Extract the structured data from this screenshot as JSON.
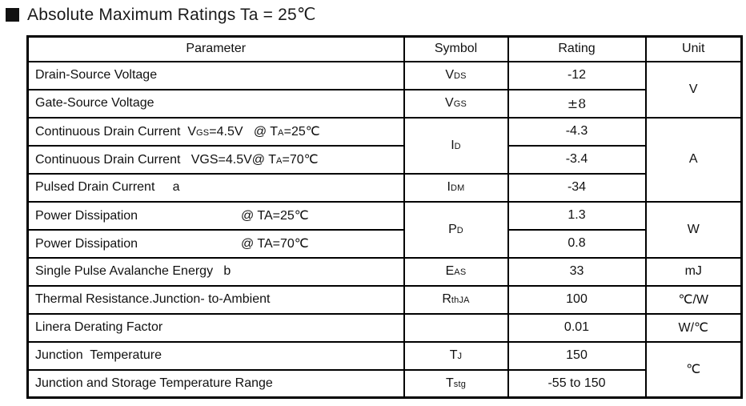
{
  "title": {
    "bullet_icon": "filled-square",
    "text": "Absolute Maximum Ratings Ta = 25℃"
  },
  "table": {
    "headers": [
      "Parameter",
      "Symbol",
      "Rating",
      "Unit"
    ],
    "rows": [
      {
        "param": [
          {
            "t": "Drain-Source Voltage"
          }
        ],
        "symbol": {
          "base": "V",
          "sub": "DS"
        },
        "rating": {
          "text": "-12"
        },
        "unit": {
          "text": "V",
          "rowspan": 2
        }
      },
      {
        "param": [
          {
            "t": "Gate-Source Voltage"
          }
        ],
        "symbol": {
          "base": "V",
          "sub": "GS"
        },
        "rating": {
          "text": "±8",
          "serif": true
        },
        "unit": null
      },
      {
        "param": [
          {
            "t": "Continuous Drain Current  V"
          },
          {
            "s": "GS"
          },
          {
            "t": "=4.5V   @ T"
          },
          {
            "s": "A"
          },
          {
            "t": "=25℃"
          }
        ],
        "symbol": {
          "base": "I",
          "sub": "D",
          "rowspan": 2
        },
        "rating": {
          "text": "-4.3"
        },
        "unit": {
          "text": "A",
          "rowspan": 3
        }
      },
      {
        "param": [
          {
            "t": "Continuous Drain Current   VGS=4.5V@ T"
          },
          {
            "s": "A"
          },
          {
            "t": "=70℃"
          }
        ],
        "symbol": null,
        "rating": {
          "text": "-3.4"
        },
        "unit": null
      },
      {
        "param": [
          {
            "t": "Pulsed Drain Current     a"
          }
        ],
        "symbol": {
          "base": "I",
          "sub": "DM"
        },
        "rating": {
          "text": "-34"
        },
        "unit": null
      },
      {
        "param": [
          {
            "t": "Power Dissipation                             @ TA=25℃"
          }
        ],
        "symbol": {
          "base": "P",
          "sub": "D",
          "rowspan": 2
        },
        "rating": {
          "text": "1.3"
        },
        "unit": {
          "text": "W",
          "rowspan": 2
        }
      },
      {
        "param": [
          {
            "t": "Power Dissipation                             @ TA=70℃"
          }
        ],
        "symbol": null,
        "rating": {
          "text": "0.8"
        },
        "unit": null
      },
      {
        "param": [
          {
            "t": "Single Pulse Avalanche Energy   b"
          }
        ],
        "symbol": {
          "base": "E",
          "sub": "AS"
        },
        "rating": {
          "text": "33"
        },
        "unit": {
          "text": "mJ"
        }
      },
      {
        "param": [
          {
            "t": "Thermal Resistance.Junction- to-Ambient"
          }
        ],
        "symbol": {
          "base": "R",
          "sub": "thJA"
        },
        "rating": {
          "text": "100"
        },
        "unit": {
          "text": "℃/W"
        }
      },
      {
        "param": [
          {
            "t": "Linera Derating Factor"
          }
        ],
        "symbol": {
          "base": null
        },
        "rating": {
          "text": "0.01"
        },
        "unit": {
          "text": "W/℃"
        }
      },
      {
        "param": [
          {
            "t": "Junction  Temperature"
          }
        ],
        "symbol": {
          "base": "T",
          "sub": "J"
        },
        "rating": {
          "text": "150"
        },
        "unit": {
          "text": "℃",
          "rowspan": 2
        }
      },
      {
        "param": [
          {
            "t": "Junction and Storage Temperature Range"
          }
        ],
        "symbol": {
          "base": "T",
          "sub": "stg"
        },
        "rating": {
          "text": "-55 to 150"
        },
        "unit": null
      }
    ]
  }
}
